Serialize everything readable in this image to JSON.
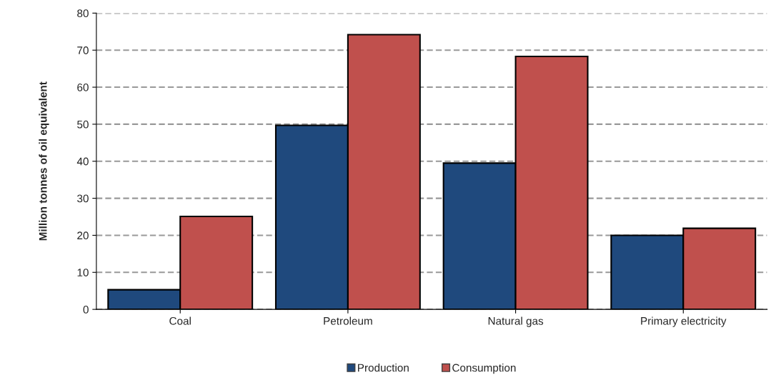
{
  "chart_data": {
    "type": "bar",
    "ylabel": "Million tonnes of oil equivalent",
    "categories": [
      "Coal",
      "Petroleum",
      "Natural gas",
      "Primary electricity"
    ],
    "series": [
      {
        "name": "Production",
        "color": "#1f497d",
        "values": [
          5.3,
          49.7,
          39.5,
          20.0
        ]
      },
      {
        "name": "Consumption",
        "color": "#c0504d",
        "values": [
          25.1,
          74.2,
          68.3,
          21.9
        ]
      }
    ],
    "ylim": [
      0,
      80
    ],
    "yticks": [
      0,
      10,
      20,
      30,
      40,
      50,
      60,
      70,
      80
    ],
    "grid": "y",
    "legend": "bottom"
  }
}
